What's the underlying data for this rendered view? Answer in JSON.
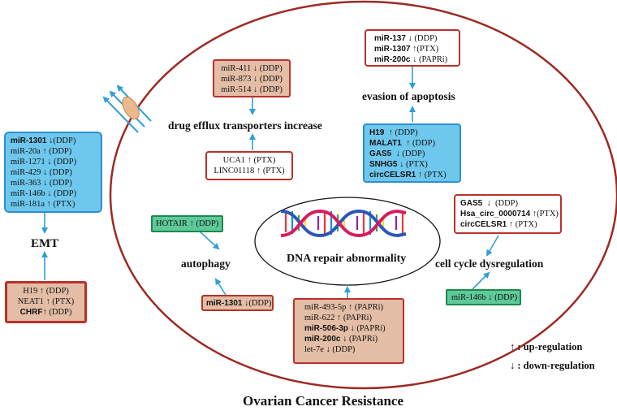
{
  "title": "Ovarian Cancer Resistance",
  "center_label": "DNA repair abnormality",
  "labels": {
    "drug_efflux": "drug efflux transporters increase",
    "evasion": "evasion of apoptosis",
    "emt": "EMT",
    "autophagy": "autophagy",
    "cell_cycle": "cell cycle dysregulation"
  },
  "boxes": {
    "emt_mirs": [
      {
        "gene": "miR-1301",
        "arrow": "↓",
        "drug": "(DDP)"
      },
      {
        "gene": "miR-20a",
        "arrow": "↑",
        "drug": "(DDP)"
      },
      {
        "gene": "miR-1271",
        "arrow": "↓",
        "drug": "(DDP)"
      },
      {
        "gene": "miR-429",
        "arrow": "↓",
        "drug": "(DDP)"
      },
      {
        "gene": "miR-363",
        "arrow": "↓",
        "drug": "(DDP)"
      },
      {
        "gene": "miR-146b",
        "arrow": "↓",
        "drug": "(DDP)"
      },
      {
        "gene": "miR-181a",
        "arrow": "↑",
        "drug": "(PTX)"
      }
    ],
    "emt_lnc": [
      {
        "gene": "H19",
        "arrow": "↑",
        "drug": "(DDP)"
      },
      {
        "gene": "NEAT1",
        "arrow": "↑",
        "drug": "(PTX)"
      },
      {
        "gene": "CHRF",
        "arrow": "↑",
        "drug": "(DDP)"
      }
    ],
    "efflux_mirs": [
      {
        "gene": "miR-411",
        "arrow": "↓",
        "drug": "(DDP)"
      },
      {
        "gene": "miR-873",
        "arrow": "↓",
        "drug": "(DDP)"
      },
      {
        "gene": "miR-514",
        "arrow": "↓",
        "drug": "(DDP)"
      }
    ],
    "efflux_lnc": [
      {
        "gene": "UCA1",
        "arrow": "↑",
        "drug": "(PTX)"
      },
      {
        "gene": "LINC01118",
        "arrow": "↑",
        "drug": "(PTX)"
      }
    ],
    "apop_mirs": [
      {
        "gene": "miR-137",
        "arrow": "↓",
        "drug": "(DDP)"
      },
      {
        "gene": "miR-1307",
        "arrow": "↑",
        "drug": "(PTX)"
      },
      {
        "gene": "miR-200c",
        "arrow": "↓",
        "drug": "(PAPRi)"
      }
    ],
    "apop_lnc": [
      {
        "gene": "H19",
        "arrow": "↑",
        "drug": "(DDP)"
      },
      {
        "gene": "MALAT1",
        "arrow": "↑",
        "drug": "(DDP)"
      },
      {
        "gene": "GAS5",
        "arrow": "↓",
        "drug": "(DDP)"
      },
      {
        "gene": "SNHG5",
        "arrow": "↓",
        "drug": "(PTX)"
      },
      {
        "gene": "circCELSR1",
        "arrow": "↑",
        "drug": "(PTX)"
      }
    ],
    "autophagy_lnc": [
      {
        "gene": "HOTAIR",
        "arrow": "↑",
        "drug": "(DDP)"
      }
    ],
    "autophagy_mir": [
      {
        "gene": "miR-1301",
        "arrow": "↓",
        "drug": "(DDP)"
      }
    ],
    "dna_mirs": [
      {
        "gene": "miR-493-5p",
        "arrow": "↑",
        "drug": "(PAPRi)"
      },
      {
        "gene": "miR-622",
        "arrow": "↑",
        "drug": "(PAPRi)"
      },
      {
        "gene": "miR-506-3p",
        "arrow": "↓",
        "drug": "(PAPRi)"
      },
      {
        "gene": "miR-200c",
        "arrow": "↓",
        "drug": "(PAPRi)"
      },
      {
        "gene": "let-7e",
        "arrow": "↓",
        "drug": "(DDP)"
      }
    ],
    "cc_lnc": [
      {
        "gene": "GAS5",
        "arrow": "↓",
        "drug": "(DDP)"
      },
      {
        "gene": "Hsa_circ_0000714",
        "arrow": "↑",
        "drug": "(PTX)"
      },
      {
        "gene": "circCELSR1",
        "arrow": "↑",
        "drug": "(PTX)"
      }
    ],
    "cc_mir": [
      {
        "gene": "miR-146b",
        "arrow": "↓",
        "drug": "(DDP)"
      }
    ]
  },
  "legend": {
    "up_symbol": "↑",
    "up_label": ": up-regulation",
    "down_symbol": "↓",
    "down_label": ": down-regulation"
  },
  "colors": {
    "outline": "#9c2a23",
    "arrow": "#2f9fd6",
    "blue_fill": "#6ec8ee",
    "tan_fill": "#e3bda5",
    "green_fill": "#5fc99a"
  }
}
